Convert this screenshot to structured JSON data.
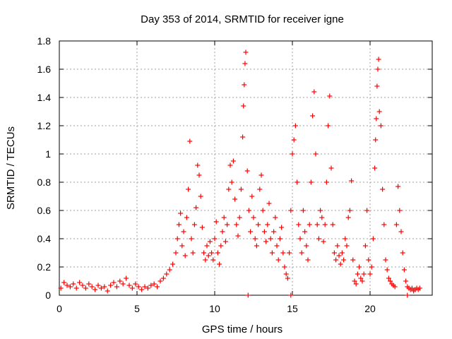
{
  "chart_data": {
    "type": "scatter",
    "title": "Day 353 of 2014, SRMTID for receiver igne",
    "xlabel": "GPS time / hours",
    "ylabel": "SRMTID / TECUs",
    "xlim": [
      0,
      24
    ],
    "ylim": [
      0,
      1.8
    ],
    "xticks": [
      0,
      5,
      10,
      15,
      20
    ],
    "yticks": [
      0,
      0.2,
      0.4,
      0.6,
      0.8,
      1,
      1.2,
      1.4,
      1.6,
      1.8
    ],
    "xtick_labels": [
      "0",
      "5",
      "10",
      "15",
      "20"
    ],
    "ytick_labels": [
      "0",
      "0.2",
      "0.4",
      "0.6",
      "0.8",
      "1",
      "1.2",
      "1.4",
      "1.6",
      "1.8"
    ],
    "grid": true,
    "marker": "+",
    "color": "#ff0000",
    "series": [
      {
        "name": "SRMTID",
        "points": [
          [
            0.1,
            0.05
          ],
          [
            0.3,
            0.09
          ],
          [
            0.5,
            0.07
          ],
          [
            0.7,
            0.06
          ],
          [
            0.9,
            0.08
          ],
          [
            1.1,
            0.05
          ],
          [
            1.3,
            0.09
          ],
          [
            1.5,
            0.07
          ],
          [
            1.7,
            0.05
          ],
          [
            1.9,
            0.08
          ],
          [
            2.1,
            0.06
          ],
          [
            2.3,
            0.04
          ],
          [
            2.5,
            0.07
          ],
          [
            2.7,
            0.05
          ],
          [
            2.9,
            0.06
          ],
          [
            3.1,
            0.03
          ],
          [
            3.3,
            0.07
          ],
          [
            3.5,
            0.09
          ],
          [
            3.7,
            0.06
          ],
          [
            3.9,
            0.1
          ],
          [
            4.1,
            0.08
          ],
          [
            4.3,
            0.12
          ],
          [
            4.5,
            0.07
          ],
          [
            4.7,
            0.05
          ],
          [
            4.9,
            0.08
          ],
          [
            5.1,
            0.06
          ],
          [
            5.3,
            0.04
          ],
          [
            5.5,
            0.06
          ],
          [
            5.7,
            0.05
          ],
          [
            5.9,
            0.07
          ],
          [
            6.1,
            0.08
          ],
          [
            6.3,
            0.06
          ],
          [
            6.5,
            0.1
          ],
          [
            6.7,
            0.12
          ],
          [
            6.9,
            0.15
          ],
          [
            7.1,
            0.18
          ],
          [
            7.3,
            0.22
          ],
          [
            7.5,
            0.3
          ],
          [
            7.6,
            0.4
          ],
          [
            7.7,
            0.5
          ],
          [
            7.8,
            0.58
          ],
          [
            7.9,
            0.35
          ],
          [
            8.0,
            0.45
          ],
          [
            8.1,
            0.28
          ],
          [
            8.2,
            0.55
          ],
          [
            8.3,
            0.75
          ],
          [
            8.4,
            1.09
          ],
          [
            8.5,
            0.4
          ],
          [
            8.6,
            0.3
          ],
          [
            8.7,
            0.5
          ],
          [
            8.8,
            0.62
          ],
          [
            8.9,
            0.92
          ],
          [
            9.0,
            0.85
          ],
          [
            9.1,
            0.7
          ],
          [
            9.2,
            0.48
          ],
          [
            9.3,
            0.3
          ],
          [
            9.4,
            0.25
          ],
          [
            9.5,
            0.35
          ],
          [
            9.6,
            0.28
          ],
          [
            9.7,
            0.38
          ],
          [
            9.8,
            0.3
          ],
          [
            9.9,
            0.25
          ],
          [
            10.0,
            0.4
          ],
          [
            10.1,
            0.52
          ],
          [
            10.2,
            0.3
          ],
          [
            10.3,
            0.22
          ],
          [
            10.4,
            0.35
          ],
          [
            10.5,
            0.45
          ],
          [
            10.6,
            0.55
          ],
          [
            10.7,
            0.38
          ],
          [
            10.8,
            0.5
          ],
          [
            10.9,
            0.75
          ],
          [
            11.0,
            0.92
          ],
          [
            11.1,
            0.8
          ],
          [
            11.2,
            0.95
          ],
          [
            11.3,
            0.68
          ],
          [
            11.4,
            0.5
          ],
          [
            11.5,
            0.42
          ],
          [
            11.6,
            0.55
          ],
          [
            11.7,
            0.75
          ],
          [
            11.8,
            1.12
          ],
          [
            11.85,
            1.34
          ],
          [
            11.9,
            1.49
          ],
          [
            11.95,
            1.64
          ],
          [
            12.0,
            1.72
          ],
          [
            12.1,
            0.88
          ],
          [
            12.2,
            0.6
          ],
          [
            12.3,
            0.45
          ],
          [
            12.4,
            0.7
          ],
          [
            12.5,
            0.55
          ],
          [
            12.6,
            0.4
          ],
          [
            12.7,
            0.35
          ],
          [
            12.8,
            0.5
          ],
          [
            12.9,
            0.75
          ],
          [
            13.0,
            0.85
          ],
          [
            13.1,
            0.6
          ],
          [
            13.2,
            0.45
          ],
          [
            13.3,
            0.38
          ],
          [
            13.4,
            0.5
          ],
          [
            13.5,
            0.65
          ],
          [
            13.6,
            0.4
          ],
          [
            13.7,
            0.3
          ],
          [
            13.8,
            0.45
          ],
          [
            13.9,
            0.55
          ],
          [
            14.0,
            0.35
          ],
          [
            14.1,
            0.25
          ],
          [
            14.2,
            0.4
          ],
          [
            14.3,
            0.48
          ],
          [
            14.4,
            0.3
          ],
          [
            14.5,
            0.2
          ],
          [
            14.6,
            0.15
          ],
          [
            14.7,
            0.12
          ],
          [
            14.8,
            0.3
          ],
          [
            14.9,
            0.6
          ],
          [
            15.0,
            1.0
          ],
          [
            15.1,
            1.1
          ],
          [
            15.2,
            1.2
          ],
          [
            15.3,
            0.8
          ],
          [
            15.4,
            0.5
          ],
          [
            15.5,
            0.4
          ],
          [
            15.6,
            0.3
          ],
          [
            15.7,
            0.6
          ],
          [
            15.8,
            0.45
          ],
          [
            15.9,
            0.35
          ],
          [
            16.0,
            0.25
          ],
          [
            16.1,
            0.5
          ],
          [
            16.2,
            0.8
          ],
          [
            16.3,
            1.27
          ],
          [
            16.4,
            1.44
          ],
          [
            16.5,
            1.0
          ],
          [
            16.6,
            0.5
          ],
          [
            16.7,
            0.4
          ],
          [
            16.8,
            0.6
          ],
          [
            16.9,
            0.55
          ],
          [
            17.0,
            0.38
          ],
          [
            17.1,
            0.5
          ],
          [
            17.2,
            0.8
          ],
          [
            17.3,
            1.2
          ],
          [
            17.4,
            1.41
          ],
          [
            17.5,
            0.9
          ],
          [
            17.6,
            0.5
          ],
          [
            17.7,
            0.3
          ],
          [
            17.8,
            0.25
          ],
          [
            17.9,
            0.35
          ],
          [
            18.0,
            0.28
          ],
          [
            18.1,
            0.22
          ],
          [
            18.2,
            0.3
          ],
          [
            18.3,
            0.25
          ],
          [
            18.4,
            0.4
          ],
          [
            18.5,
            0.35
          ],
          [
            18.6,
            0.55
          ],
          [
            18.7,
            0.6
          ],
          [
            18.8,
            0.81
          ],
          [
            18.9,
            0.25
          ],
          [
            19.0,
            0.1
          ],
          [
            19.1,
            0.08
          ],
          [
            19.2,
            0.15
          ],
          [
            19.3,
            0.2
          ],
          [
            19.4,
            0.12
          ],
          [
            19.5,
            0.1
          ],
          [
            19.6,
            0.15
          ],
          [
            19.7,
            0.35
          ],
          [
            19.8,
            0.6
          ],
          [
            19.9,
            0.25
          ],
          [
            20.0,
            0.15
          ],
          [
            20.1,
            0.2
          ],
          [
            20.2,
            0.4
          ],
          [
            20.3,
            0.9
          ],
          [
            20.35,
            1.1
          ],
          [
            20.4,
            1.25
          ],
          [
            20.45,
            1.48
          ],
          [
            20.5,
            1.6
          ],
          [
            20.55,
            1.67
          ],
          [
            20.6,
            1.3
          ],
          [
            20.7,
            1.2
          ],
          [
            20.8,
            0.75
          ],
          [
            20.9,
            0.5
          ],
          [
            21.0,
            0.25
          ],
          [
            21.1,
            0.18
          ],
          [
            21.2,
            0.12
          ],
          [
            21.3,
            0.1
          ],
          [
            21.4,
            0.08
          ],
          [
            21.5,
            0.07
          ],
          [
            21.6,
            0.06
          ],
          [
            21.7,
            0.5
          ],
          [
            21.8,
            0.77
          ],
          [
            21.9,
            0.6
          ],
          [
            22.0,
            0.45
          ],
          [
            22.1,
            0.3
          ],
          [
            22.2,
            0.18
          ],
          [
            22.3,
            0.1
          ],
          [
            22.4,
            0.06
          ],
          [
            22.5,
            0.05
          ],
          [
            22.6,
            0.04
          ],
          [
            22.7,
            0.05
          ],
          [
            22.8,
            0.03
          ],
          [
            22.9,
            0.04
          ],
          [
            23.0,
            0.05
          ],
          [
            23.1,
            0.04
          ],
          [
            23.2,
            0.05
          ],
          [
            12.15,
            0.0
          ],
          [
            14.9,
            0.0
          ],
          [
            22.4,
            0.0
          ]
        ]
      }
    ]
  }
}
